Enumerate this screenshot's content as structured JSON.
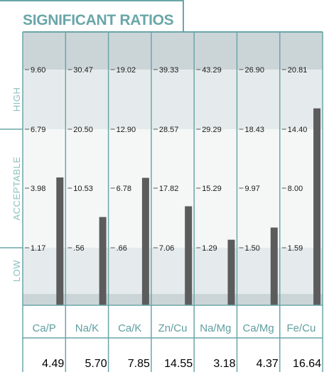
{
  "title": "SIGNIFICANT RATIOS",
  "chart_data": {
    "type": "bar",
    "title": "SIGNIFICANT RATIOS",
    "bands": [
      "HIGH",
      "ACCEPTABLE",
      "LOW"
    ],
    "categories": [
      "Ca/P",
      "Na/K",
      "Ca/K",
      "Zn/Cu",
      "Na/Mg",
      "Ca/Mg",
      "Fe/Cu"
    ],
    "values": [
      "4.49",
      "5.70",
      "7.85",
      "14.55",
      "3.18",
      "4.37",
      "16.64"
    ],
    "ticks": [
      [
        "9.60",
        "6.79",
        "3.98",
        "1.17"
      ],
      [
        "30.47",
        "20.50",
        "10.53",
        ".56"
      ],
      [
        "19.02",
        "12.90",
        "6.78",
        ".66"
      ],
      [
        "39.33",
        "28.57",
        "17.82",
        "7.06"
      ],
      [
        "43.29",
        "29.29",
        "15.29",
        "1.29"
      ],
      [
        "26.90",
        "18.43",
        "9.97",
        "1.50"
      ],
      [
        "20.81",
        "14.40",
        "8.00",
        "1.59"
      ]
    ],
    "grid": false,
    "colors": {
      "frame": "#6aa6a8",
      "high_band": "#e5ebec",
      "acceptable_band": "#f5f7f7",
      "low_band": "#e5ebec",
      "top_strip": "#cbd5d8",
      "bottom_strip": "#cbd5d8",
      "bar": "#5c5c5c"
    }
  }
}
